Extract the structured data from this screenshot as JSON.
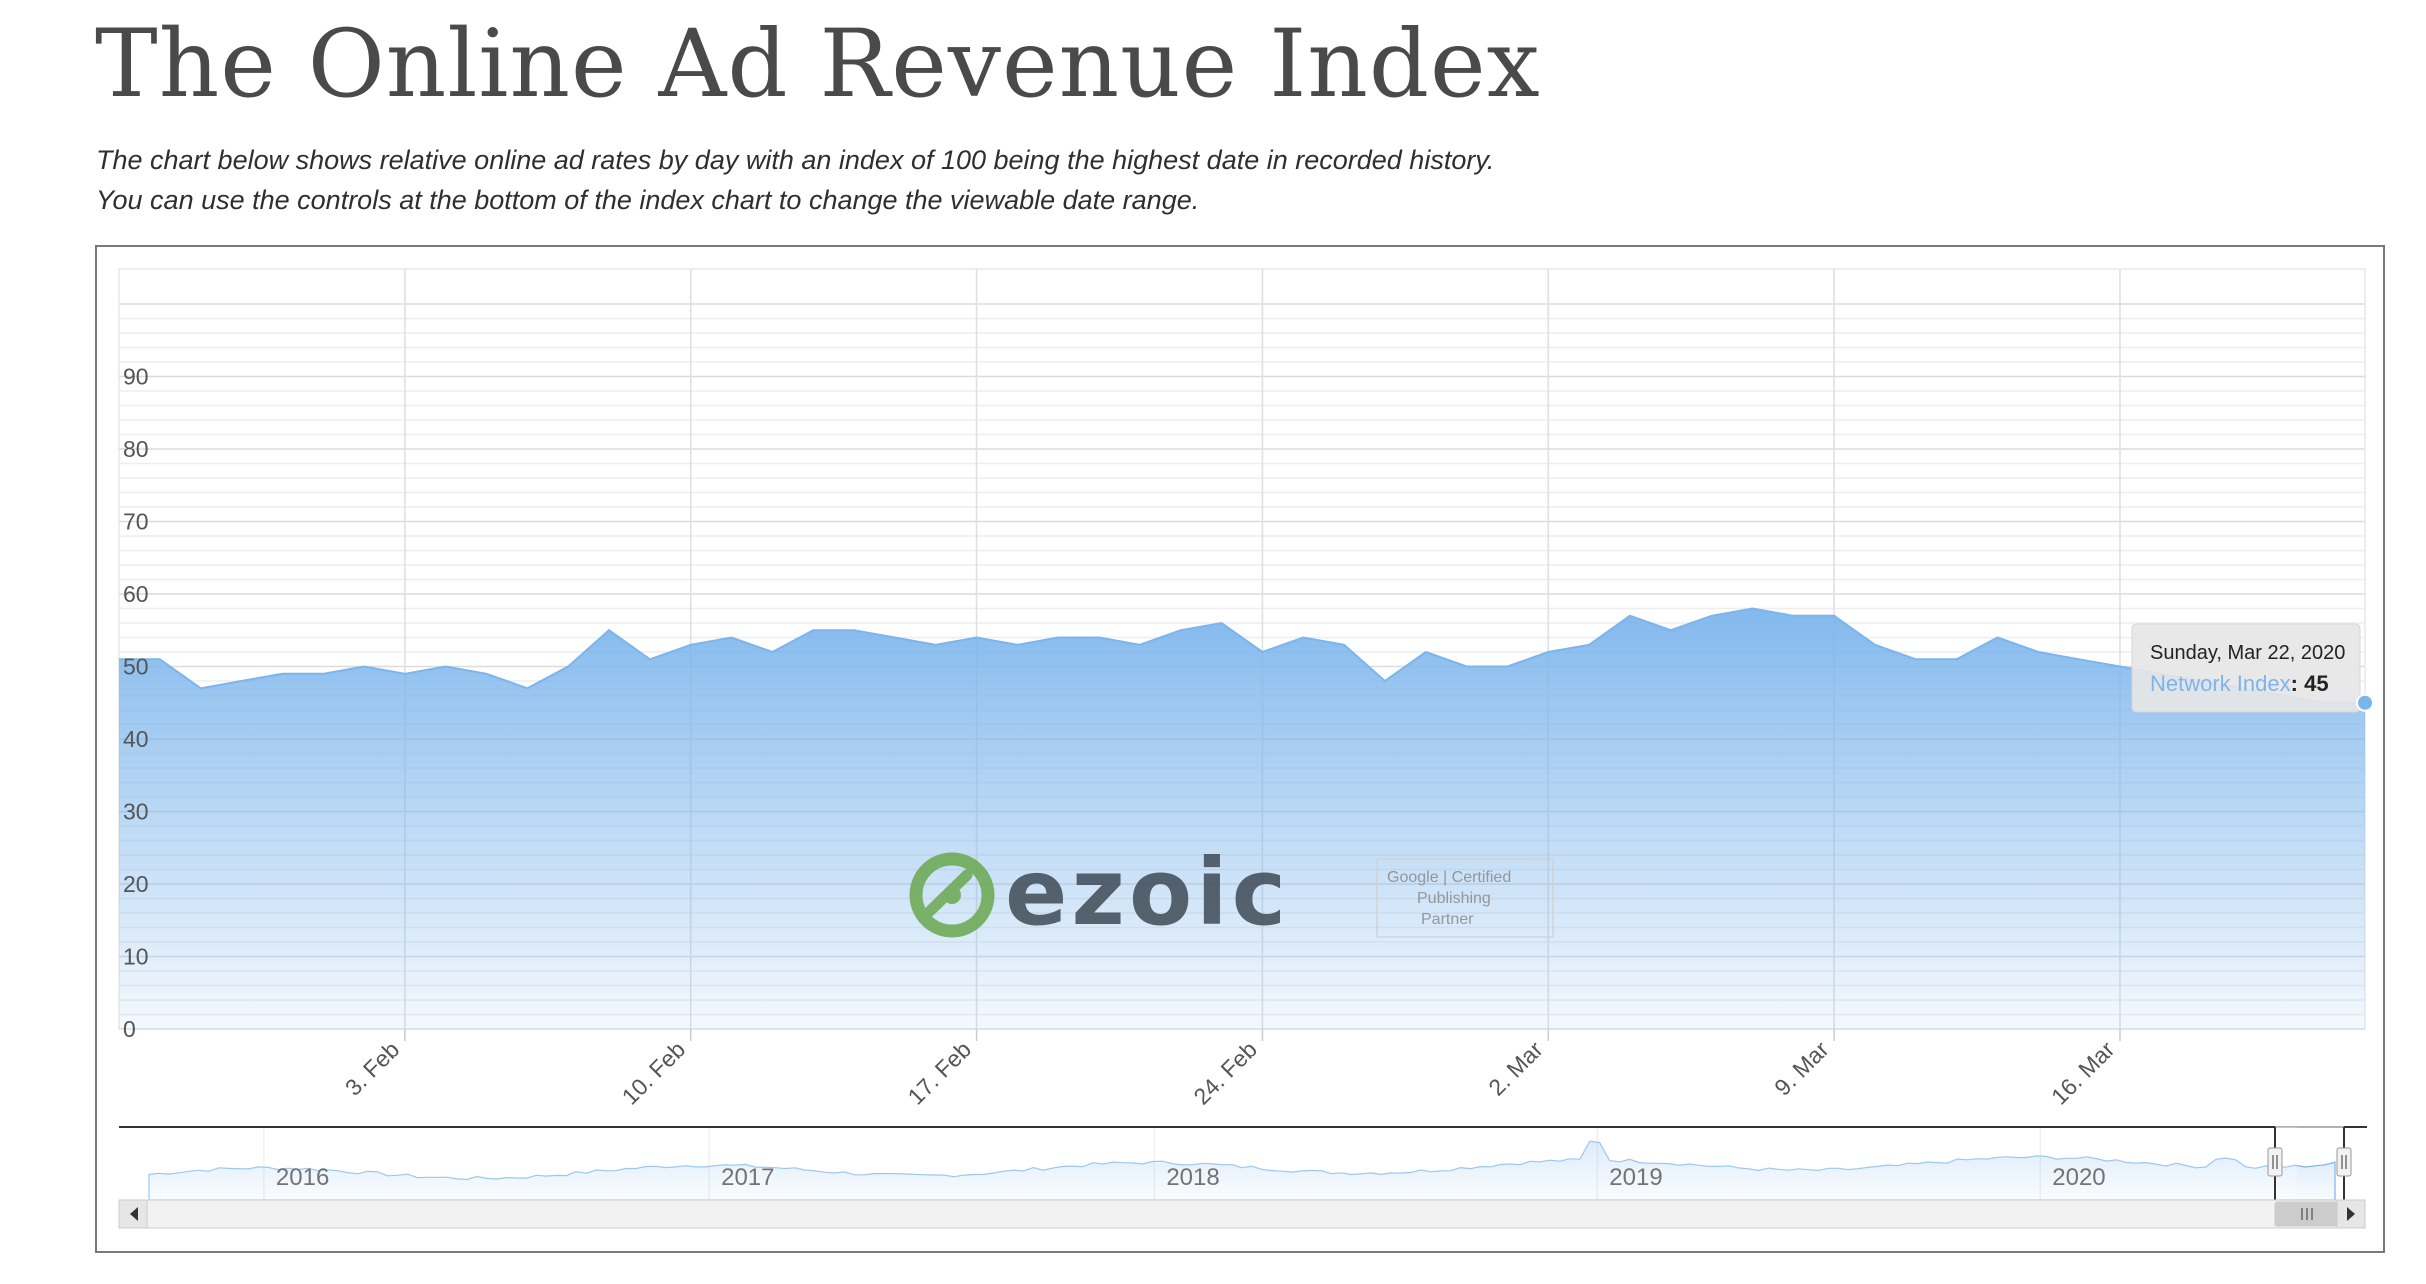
{
  "page": {
    "title": "The Online Ad Revenue Index",
    "description_line1": "The chart below shows relative online ad rates by day with an index of 100 being the highest date in recorded history.",
    "description_line2": "You can use the controls at the bottom of the index chart to change the viewable date range."
  },
  "chart_data": {
    "type": "area",
    "title": "",
    "xlabel": "",
    "ylabel": "",
    "ylim": [
      0,
      100
    ],
    "yticks": [
      0,
      10,
      20,
      30,
      40,
      50,
      60,
      70,
      80,
      90
    ],
    "grid": true,
    "x_start": "2020-01-27",
    "x_end": "2020-03-22",
    "xticks": [
      {
        "date": "2020-02-03",
        "label": "3. Feb"
      },
      {
        "date": "2020-02-10",
        "label": "10. Feb"
      },
      {
        "date": "2020-02-17",
        "label": "17. Feb"
      },
      {
        "date": "2020-02-24",
        "label": "24. Feb"
      },
      {
        "date": "2020-03-02",
        "label": "2. Mar"
      },
      {
        "date": "2020-03-09",
        "label": "9. Mar"
      },
      {
        "date": "2020-03-16",
        "label": "16. Mar"
      }
    ],
    "series": [
      {
        "name": "Network Index",
        "color": "#7cb5ec",
        "x": [
          "2020-01-27",
          "2020-01-28",
          "2020-01-29",
          "2020-01-30",
          "2020-01-31",
          "2020-02-01",
          "2020-02-02",
          "2020-02-03",
          "2020-02-04",
          "2020-02-05",
          "2020-02-06",
          "2020-02-07",
          "2020-02-08",
          "2020-02-09",
          "2020-02-10",
          "2020-02-11",
          "2020-02-12",
          "2020-02-13",
          "2020-02-14",
          "2020-02-15",
          "2020-02-16",
          "2020-02-17",
          "2020-02-18",
          "2020-02-19",
          "2020-02-20",
          "2020-02-21",
          "2020-02-22",
          "2020-02-23",
          "2020-02-24",
          "2020-02-25",
          "2020-02-26",
          "2020-02-27",
          "2020-02-28",
          "2020-02-29",
          "2020-03-01",
          "2020-03-02",
          "2020-03-03",
          "2020-03-04",
          "2020-03-05",
          "2020-03-06",
          "2020-03-07",
          "2020-03-08",
          "2020-03-09",
          "2020-03-10",
          "2020-03-11",
          "2020-03-12",
          "2020-03-13",
          "2020-03-14",
          "2020-03-15",
          "2020-03-16",
          "2020-03-17",
          "2020-03-18",
          "2020-03-19",
          "2020-03-20",
          "2020-03-21",
          "2020-03-22"
        ],
        "values": [
          51,
          51,
          47,
          48,
          49,
          49,
          50,
          49,
          50,
          49,
          47,
          50,
          55,
          51,
          53,
          54,
          52,
          55,
          55,
          54,
          53,
          54,
          53,
          54,
          54,
          53,
          55,
          56,
          52,
          54,
          53,
          48,
          52,
          50,
          50,
          52,
          53,
          57,
          55,
          57,
          58,
          57,
          57,
          53,
          51,
          51,
          54,
          52,
          51,
          50,
          49,
          48,
          47,
          46,
          45,
          45
        ]
      }
    ],
    "tooltip": {
      "date": "Sunday, Mar 22, 2020",
      "series": "Network Index",
      "value": "45"
    },
    "navigator": {
      "years": [
        "2016",
        "2017",
        "2018",
        "2019",
        "2020"
      ]
    }
  },
  "watermark": {
    "logo_text": "ezoic",
    "badge_line1": "Google | Certified",
    "badge_line2": "Publishing",
    "badge_line3": "Partner"
  },
  "colors": {
    "series": "#7cb5ec",
    "grid": "#e6e6e6",
    "logo_green": "#6aa84f",
    "logo_dark": "#3f4a55"
  }
}
